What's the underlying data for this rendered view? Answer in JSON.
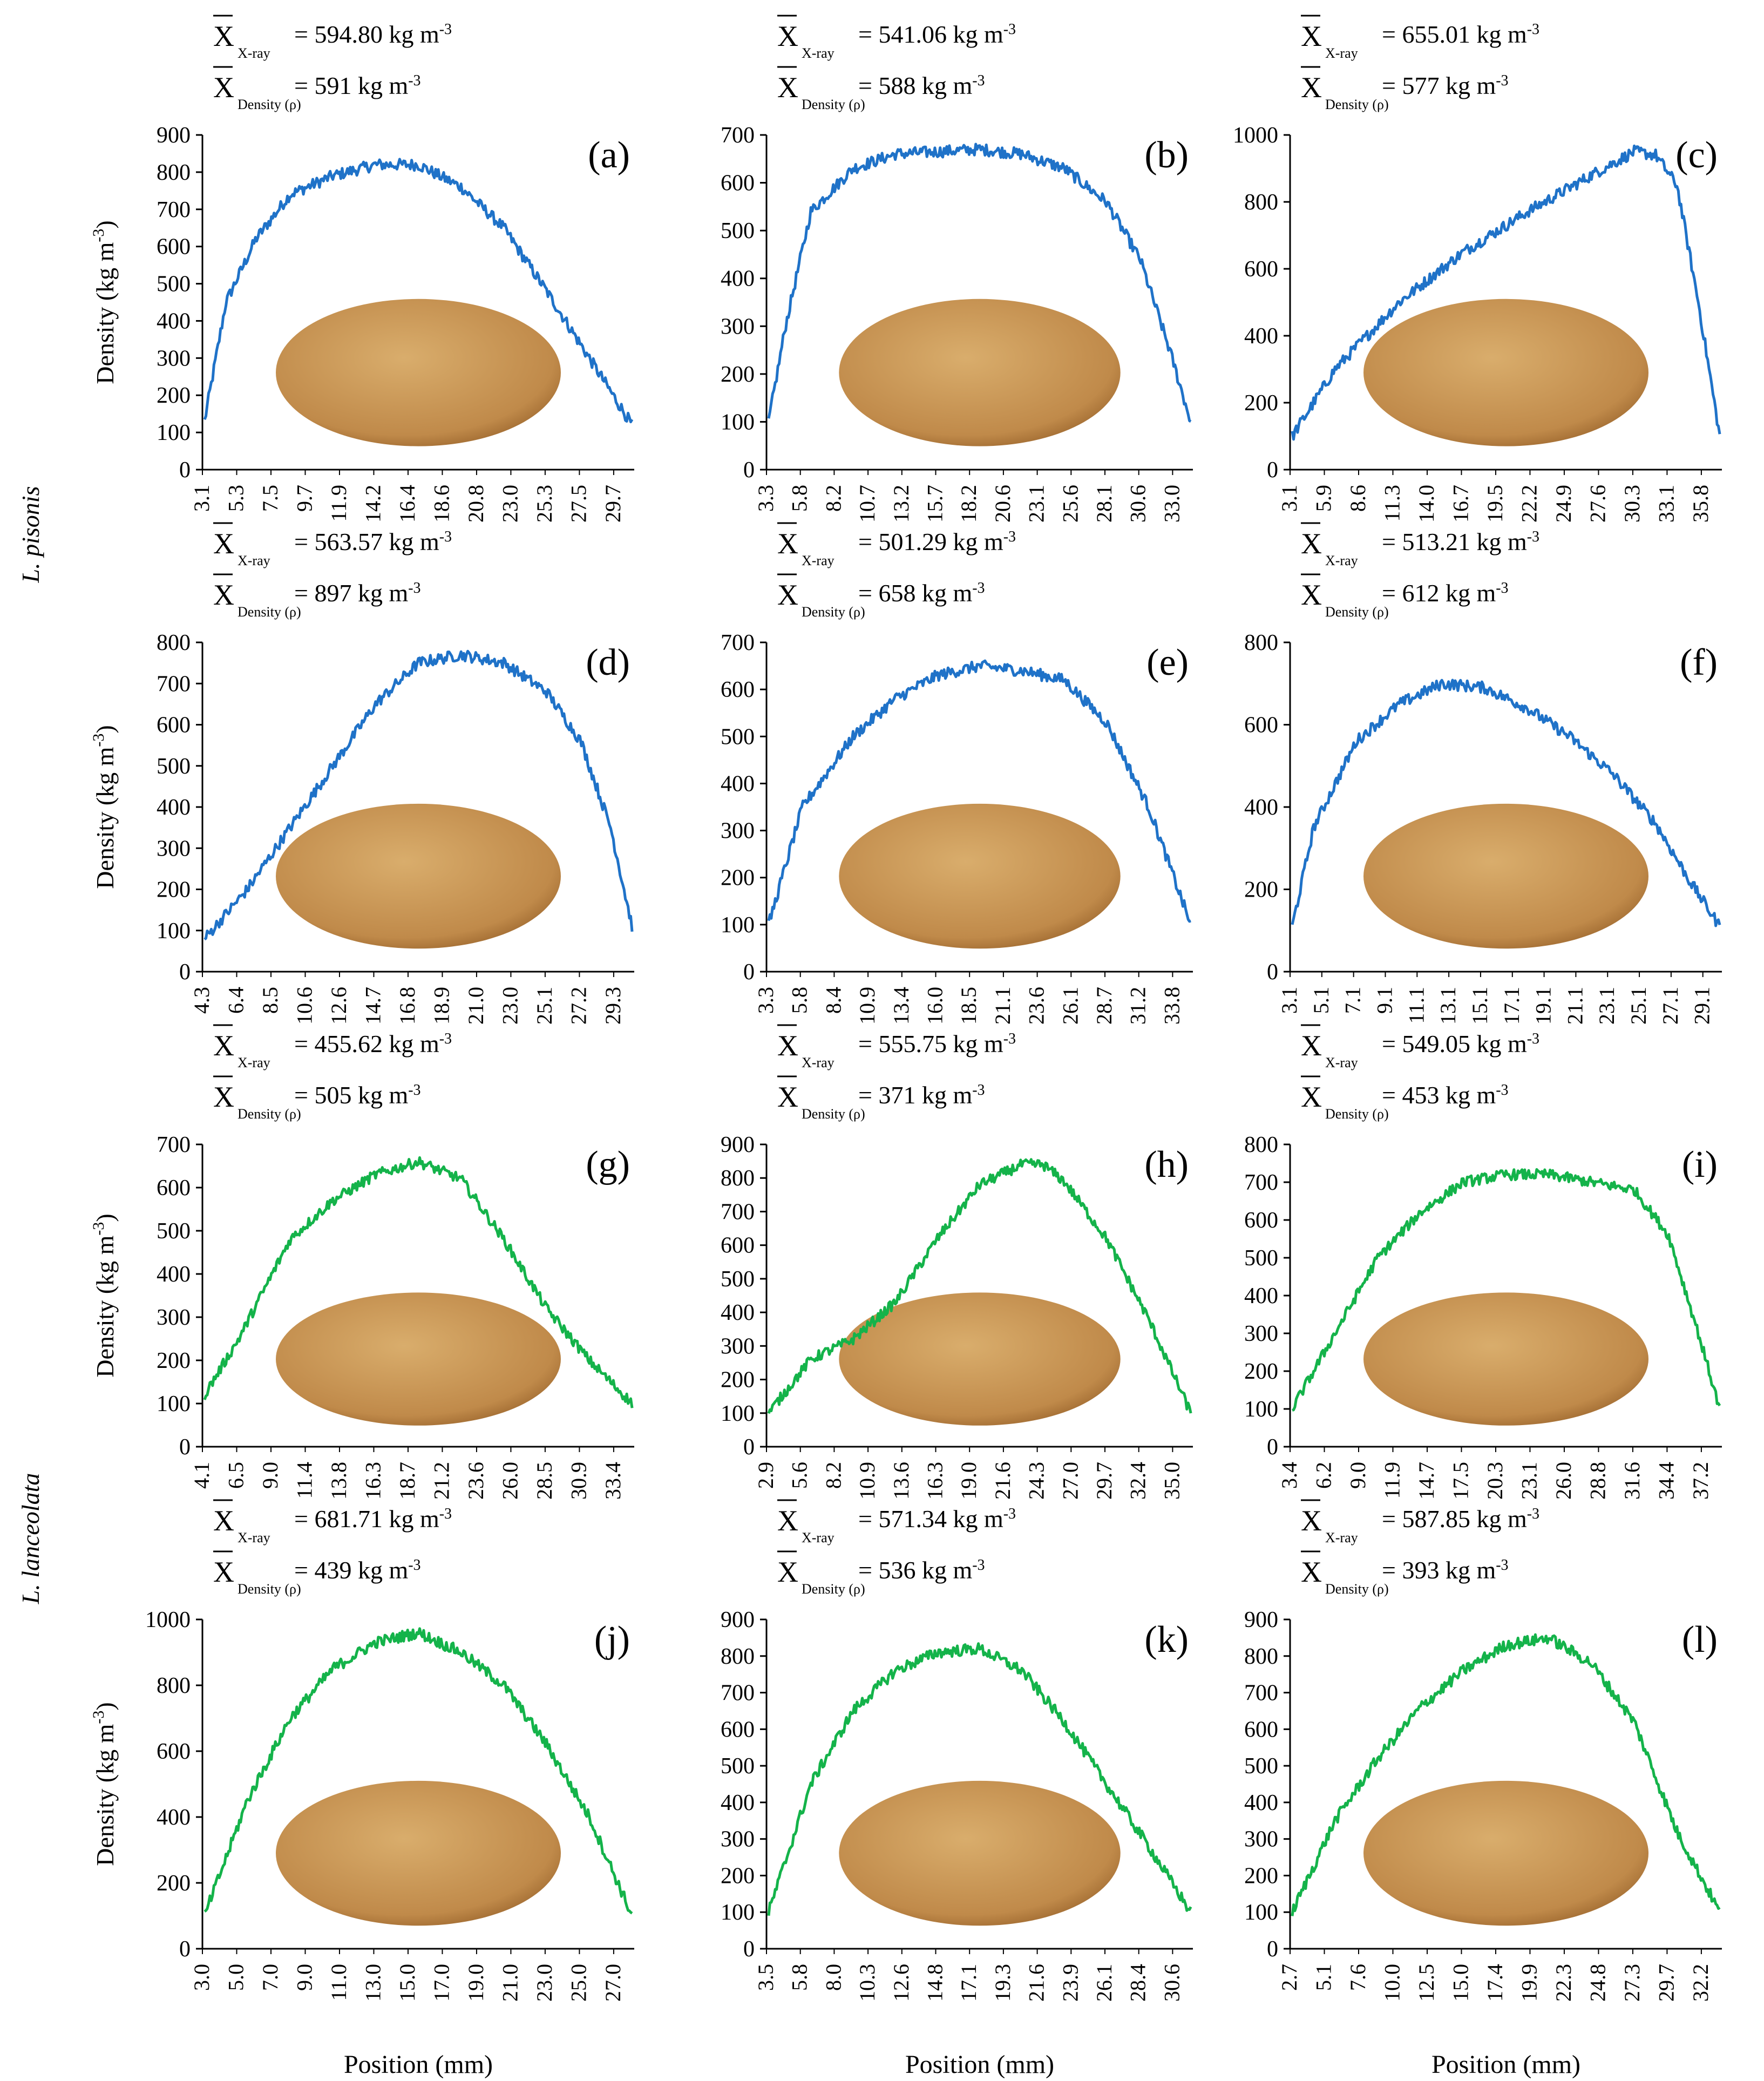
{
  "figure": {
    "species_top": "L. pisonis",
    "species_bottom": "L. lanceolata",
    "ylabel_main": "Density (kg m",
    "ylabel_sup": "-3",
    "ylabel_close": ")",
    "xlabel": "Position (mm)",
    "xbar_symbol": "X",
    "xray_sub": "X-ray",
    "density_sub": "Density (ρ)",
    "unit_main": " kg m",
    "unit_sup": "-3",
    "colors": {
      "blue": "#1f72c8",
      "green": "#14b34a",
      "seed_light": "#d9ad6c",
      "seed_dark": "#8f5a24"
    }
  },
  "chart_data": [
    {
      "type": "line",
      "label": "(a)",
      "species": "L. pisonis",
      "color": "blue",
      "ylim": [
        0,
        900
      ],
      "yticks": [
        0,
        100,
        200,
        300,
        400,
        500,
        600,
        700,
        800,
        900
      ],
      "xlabels": [
        "3.1",
        "5.3",
        "7.5",
        "9.7",
        "11.9",
        "14.2",
        "16.4",
        "18.6",
        "20.8",
        "23.0",
        "25.3",
        "27.5",
        "29.7"
      ],
      "xray_mean": "594.80",
      "density_mean": "591",
      "profile": [
        [
          0,
          130
        ],
        [
          0.05,
          450
        ],
        [
          0.12,
          620
        ],
        [
          0.2,
          740
        ],
        [
          0.3,
          790
        ],
        [
          0.4,
          820
        ],
        [
          0.5,
          820
        ],
        [
          0.6,
          760
        ],
        [
          0.7,
          650
        ],
        [
          0.8,
          480
        ],
        [
          0.9,
          300
        ],
        [
          1,
          120
        ]
      ]
    },
    {
      "type": "line",
      "label": "(b)",
      "species": "L. pisonis",
      "color": "blue",
      "ylim": [
        0,
        700
      ],
      "yticks": [
        0,
        100,
        200,
        300,
        400,
        500,
        600,
        700
      ],
      "xlabels": [
        "3.3",
        "5.8",
        "8.2",
        "10.7",
        "13.2",
        "15.7",
        "18.2",
        "20.6",
        "23.1",
        "25.6",
        "28.1",
        "30.6",
        "33.0"
      ],
      "xray_mean": "541.06",
      "density_mean": "588",
      "profile": [
        [
          0,
          100
        ],
        [
          0.04,
          300
        ],
        [
          0.1,
          540
        ],
        [
          0.2,
          630
        ],
        [
          0.3,
          660
        ],
        [
          0.5,
          670
        ],
        [
          0.6,
          660
        ],
        [
          0.7,
          630
        ],
        [
          0.8,
          560
        ],
        [
          0.88,
          440
        ],
        [
          0.95,
          250
        ],
        [
          1,
          100
        ]
      ]
    },
    {
      "type": "line",
      "label": "(c)",
      "species": "L. pisonis",
      "color": "blue",
      "ylim": [
        0,
        1000
      ],
      "yticks": [
        0,
        200,
        400,
        600,
        800,
        1000
      ],
      "xlabels": [
        "3.1",
        "5.9",
        "8.6",
        "11.3",
        "14.0",
        "16.7",
        "19.5",
        "22.2",
        "24.9",
        "27.6",
        "30.3",
        "33.1",
        "35.8"
      ],
      "xray_mean": "655.01",
      "density_mean": "577",
      "profile": [
        [
          0,
          100
        ],
        [
          0.1,
          300
        ],
        [
          0.25,
          500
        ],
        [
          0.4,
          650
        ],
        [
          0.55,
          770
        ],
        [
          0.7,
          880
        ],
        [
          0.8,
          950
        ],
        [
          0.85,
          940
        ],
        [
          0.9,
          850
        ],
        [
          0.95,
          500
        ],
        [
          1,
          100
        ]
      ]
    },
    {
      "type": "line",
      "label": "(d)",
      "species": "L. pisonis",
      "color": "blue",
      "ylim": [
        0,
        800
      ],
      "yticks": [
        0,
        100,
        200,
        300,
        400,
        500,
        600,
        700,
        800
      ],
      "xlabels": [
        "4.3",
        "6.4",
        "8.5",
        "10.6",
        "12.6",
        "14.7",
        "16.8",
        "18.9",
        "21.0",
        "23.0",
        "25.1",
        "27.2",
        "29.3"
      ],
      "xray_mean": "563.57",
      "density_mean": "897",
      "profile": [
        [
          0,
          80
        ],
        [
          0.1,
          200
        ],
        [
          0.2,
          350
        ],
        [
          0.3,
          500
        ],
        [
          0.4,
          650
        ],
        [
          0.5,
          750
        ],
        [
          0.6,
          770
        ],
        [
          0.7,
          750
        ],
        [
          0.8,
          680
        ],
        [
          0.88,
          560
        ],
        [
          0.95,
          350
        ],
        [
          1,
          110
        ]
      ]
    },
    {
      "type": "line",
      "label": "(e)",
      "species": "L. pisonis",
      "color": "blue",
      "ylim": [
        0,
        700
      ],
      "yticks": [
        0,
        100,
        200,
        300,
        400,
        500,
        600,
        700
      ],
      "xlabels": [
        "3.3",
        "5.8",
        "8.4",
        "10.9",
        "13.4",
        "16.0",
        "18.5",
        "21.1",
        "23.6",
        "26.1",
        "28.7",
        "31.2",
        "33.8"
      ],
      "xray_mean": "501.29",
      "density_mean": "658",
      "profile": [
        [
          0,
          100
        ],
        [
          0.08,
          350
        ],
        [
          0.2,
          500
        ],
        [
          0.3,
          580
        ],
        [
          0.4,
          630
        ],
        [
          0.5,
          650
        ],
        [
          0.6,
          640
        ],
        [
          0.7,
          620
        ],
        [
          0.8,
          530
        ],
        [
          0.9,
          350
        ],
        [
          1,
          100
        ]
      ]
    },
    {
      "type": "line",
      "label": "(f)",
      "species": "L. pisonis",
      "color": "blue",
      "ylim": [
        0,
        800
      ],
      "yticks": [
        0,
        200,
        400,
        600,
        800
      ],
      "xlabels": [
        "3.1",
        "5.1",
        "7.1",
        "9.1",
        "11.1",
        "13.1",
        "15.1",
        "17.1",
        "19.1",
        "21.1",
        "23.1",
        "25.1",
        "27.1",
        "29.1"
      ],
      "xray_mean": "513.21",
      "density_mean": "612",
      "profile": [
        [
          0,
          110
        ],
        [
          0.05,
          350
        ],
        [
          0.15,
          560
        ],
        [
          0.25,
          650
        ],
        [
          0.35,
          700
        ],
        [
          0.45,
          690
        ],
        [
          0.55,
          640
        ],
        [
          0.65,
          570
        ],
        [
          0.75,
          480
        ],
        [
          0.85,
          360
        ],
        [
          0.93,
          220
        ],
        [
          1,
          110
        ]
      ]
    },
    {
      "type": "line",
      "label": "(g)",
      "species": "L. lanceolata",
      "color": "green",
      "ylim": [
        0,
        700
      ],
      "yticks": [
        0,
        100,
        200,
        300,
        400,
        500,
        600,
        700
      ],
      "xlabels": [
        "4.1",
        "6.5",
        "9.0",
        "11.4",
        "13.8",
        "16.3",
        "18.7",
        "21.2",
        "23.6",
        "26.0",
        "28.5",
        "30.9",
        "33.4"
      ],
      "xray_mean": "455.62",
      "density_mean": "505",
      "profile": [
        [
          0,
          120
        ],
        [
          0.08,
          250
        ],
        [
          0.2,
          480
        ],
        [
          0.3,
          570
        ],
        [
          0.4,
          630
        ],
        [
          0.5,
          660
        ],
        [
          0.6,
          620
        ],
        [
          0.7,
          480
        ],
        [
          0.8,
          320
        ],
        [
          0.9,
          200
        ],
        [
          1,
          100
        ]
      ]
    },
    {
      "type": "line",
      "label": "(h)",
      "species": "L. lanceolata",
      "color": "green",
      "ylim": [
        0,
        900
      ],
      "yticks": [
        0,
        100,
        200,
        300,
        400,
        500,
        600,
        700,
        800,
        900
      ],
      "xlabels": [
        "2.9",
        "5.6",
        "8.2",
        "10.9",
        "13.6",
        "16.3",
        "19.0",
        "21.6",
        "24.3",
        "27.0",
        "29.7",
        "32.4",
        "35.0"
      ],
      "xray_mean": "555.75",
      "density_mean": "371",
      "profile": [
        [
          0,
          100
        ],
        [
          0.1,
          260
        ],
        [
          0.2,
          320
        ],
        [
          0.3,
          430
        ],
        [
          0.4,
          620
        ],
        [
          0.5,
          780
        ],
        [
          0.6,
          840
        ],
        [
          0.65,
          840
        ],
        [
          0.7,
          790
        ],
        [
          0.8,
          620
        ],
        [
          0.9,
          380
        ],
        [
          1,
          100
        ]
      ]
    },
    {
      "type": "line",
      "label": "(i)",
      "species": "L. lanceolata",
      "color": "green",
      "ylim": [
        0,
        800
      ],
      "yticks": [
        0,
        100,
        200,
        300,
        400,
        500,
        600,
        700,
        800
      ],
      "xlabels": [
        "3.4",
        "6.2",
        "9.0",
        "11.9",
        "14.7",
        "17.5",
        "20.3",
        "23.1",
        "26.0",
        "28.8",
        "31.6",
        "34.4",
        "37.2"
      ],
      "xray_mean": "549.05",
      "density_mean": "453",
      "profile": [
        [
          0,
          100
        ],
        [
          0.1,
          300
        ],
        [
          0.2,
          500
        ],
        [
          0.3,
          620
        ],
        [
          0.4,
          700
        ],
        [
          0.5,
          720
        ],
        [
          0.6,
          720
        ],
        [
          0.7,
          700
        ],
        [
          0.8,
          680
        ],
        [
          0.88,
          560
        ],
        [
          0.95,
          300
        ],
        [
          1,
          100
        ]
      ]
    },
    {
      "type": "line",
      "label": "(j)",
      "species": "L. lanceolata",
      "color": "green",
      "ylim": [
        0,
        1000
      ],
      "yticks": [
        0,
        200,
        400,
        600,
        800,
        1000
      ],
      "xlabels": [
        "3.0",
        "5.0",
        "7.0",
        "9.0",
        "11.0",
        "13.0",
        "15.0",
        "17.0",
        "19.0",
        "21.0",
        "23.0",
        "25.0",
        "27.0"
      ],
      "xray_mean": "681.71",
      "density_mean": "439",
      "profile": [
        [
          0,
          100
        ],
        [
          0.1,
          450
        ],
        [
          0.2,
          700
        ],
        [
          0.3,
          850
        ],
        [
          0.4,
          930
        ],
        [
          0.5,
          960
        ],
        [
          0.6,
          900
        ],
        [
          0.7,
          800
        ],
        [
          0.8,
          620
        ],
        [
          0.9,
          400
        ],
        [
          1,
          100
        ]
      ]
    },
    {
      "type": "line",
      "label": "(k)",
      "species": "L. lanceolata",
      "color": "green",
      "ylim": [
        0,
        900
      ],
      "yticks": [
        0,
        100,
        200,
        300,
        400,
        500,
        600,
        700,
        800,
        900
      ],
      "xlabels": [
        "3.5",
        "5.8",
        "8.0",
        "10.3",
        "12.6",
        "14.8",
        "17.1",
        "19.3",
        "21.6",
        "23.9",
        "26.1",
        "28.4",
        "30.6"
      ],
      "xray_mean": "571.34",
      "density_mean": "536",
      "profile": [
        [
          0,
          100
        ],
        [
          0.1,
          450
        ],
        [
          0.2,
          650
        ],
        [
          0.3,
          760
        ],
        [
          0.4,
          810
        ],
        [
          0.5,
          820
        ],
        [
          0.6,
          760
        ],
        [
          0.7,
          620
        ],
        [
          0.8,
          450
        ],
        [
          0.9,
          280
        ],
        [
          1,
          100
        ]
      ]
    },
    {
      "type": "line",
      "label": "(l)",
      "species": "L. lanceolata",
      "color": "green",
      "ylim": [
        0,
        900
      ],
      "yticks": [
        0,
        100,
        200,
        300,
        400,
        500,
        600,
        700,
        800,
        900
      ],
      "xlabels": [
        "2.7",
        "5.1",
        "7.6",
        "10.0",
        "12.5",
        "15.0",
        "17.4",
        "19.9",
        "22.3",
        "24.8",
        "27.3",
        "29.7",
        "32.2"
      ],
      "xray_mean": "587.85",
      "density_mean": "393",
      "profile": [
        [
          0,
          100
        ],
        [
          0.1,
          350
        ],
        [
          0.2,
          520
        ],
        [
          0.3,
          660
        ],
        [
          0.4,
          760
        ],
        [
          0.5,
          830
        ],
        [
          0.6,
          850
        ],
        [
          0.7,
          780
        ],
        [
          0.8,
          620
        ],
        [
          0.9,
          320
        ],
        [
          1,
          100
        ]
      ]
    }
  ]
}
